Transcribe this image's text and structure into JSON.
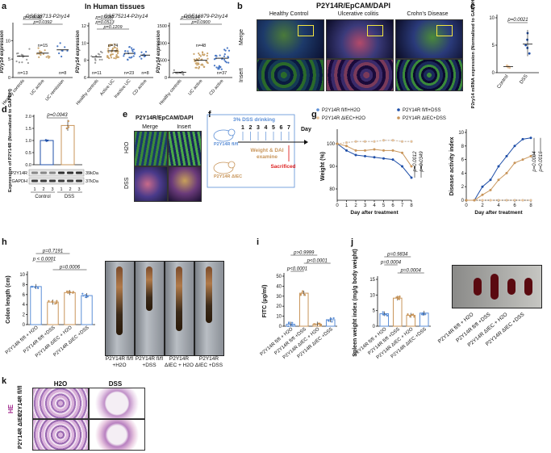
{
  "panel_a": {
    "letter": "a",
    "section_title": "In Human tissues",
    "plots": [
      {
        "title": "GSE38713-P2ry14",
        "ylabel": "P2ry14 expression",
        "groups": [
          "Healthy controls",
          "UC active",
          "UC remission"
        ],
        "n": [
          "n=13",
          "n=15",
          "n=8"
        ],
        "pvals": [
          "p=0.0392",
          "p=0.0092"
        ],
        "ylim": [
          0,
          14
        ]
      },
      {
        "title": "GSE75214-P2ry14",
        "ylabel": "P2ry14 expression",
        "groups": [
          "Healthy controls",
          "Active UC",
          "Inactive UC",
          "CD active"
        ],
        "n": [
          "n=11",
          "n=74",
          "n=23",
          "n=8"
        ],
        "pvals": [
          "p=0.1209",
          "p=0.0513",
          "p=0.0057"
        ],
        "ylim": [
          6,
          12
        ]
      },
      {
        "title": "GSE16879-P2ry14",
        "ylabel": "P2ry14 expression",
        "groups": [
          "Healthy controls",
          "UC active",
          "CD active"
        ],
        "n": [
          "n=5",
          "n=48",
          "n=37"
        ],
        "pvals": [
          "p=0.0900",
          "p=0.0104"
        ],
        "ylim": [
          0,
          1500
        ]
      }
    ]
  },
  "panel_b": {
    "letter": "b",
    "title": "P2Y14R/EpCAM/DAPI",
    "columns": [
      "Healthy Control",
      "Ulcerative colitis",
      "Crohn's Disease"
    ],
    "rows": [
      "Merge",
      "Insert"
    ]
  },
  "panel_c": {
    "letter": "c",
    "ylabel": "P2ry14 mRNA expression (Normalized to GAPDH)",
    "groups": [
      "Control",
      "DSS"
    ],
    "pval": "p=0.0021",
    "ticks": [
      "0",
      "5",
      "10"
    ],
    "ylim": [
      0,
      10
    ]
  },
  "panel_d": {
    "letter": "d",
    "ylabel": "Expression of P2Y14R (Normalized to GAPDH)",
    "pval": "p=0.0043",
    "ticks": [
      "0.0",
      "0.5",
      "1.0",
      "1.5",
      "2.0"
    ],
    "ylim": [
      0,
      2
    ],
    "blot_rows": [
      {
        "name": "P2Y14R",
        "size": "39kDa"
      },
      {
        "name": "GAPDH",
        "size": "37kDa"
      }
    ],
    "lanes": [
      "1",
      "2",
      "3",
      "1",
      "2",
      "3"
    ],
    "groups": [
      "Control",
      "DSS"
    ]
  },
  "panel_e": {
    "letter": "e",
    "title": "P2Y14R/EpCAM/DAPI",
    "columns": [
      "Merge",
      "Insert"
    ],
    "rows": [
      "H2O",
      "DSS"
    ]
  },
  "panel_f": {
    "letter": "f",
    "dss_label": "3% DSS drinking",
    "days": [
      "1",
      "2",
      "3",
      "4",
      "5",
      "6",
      "7"
    ],
    "day_label": "Day",
    "weight_label": "Weight & DAI",
    "examine_label": "examine",
    "sacrificed_label": "Sacrificed",
    "mouse_labels": [
      "P2Y14R fl/fl",
      "P2Y14R ΔIEC"
    ]
  },
  "panel_g": {
    "letter": "g",
    "legend": [
      "P2Y14R fl/fl+H2O",
      "P2Y14R fl/fl+DSS",
      "P2Y14R ΔIEC+H2O",
      "P2Y14R ΔIEC+DSS"
    ],
    "series_colors": [
      "#5b8ed6",
      "#1f4fa8",
      "#e8c39a",
      "#c8955a"
    ],
    "chart_data": [
      {
        "type": "line",
        "xlabel": "Day after treatment",
        "ylabel": "Weight (%)",
        "x": [
          0,
          1,
          2,
          3,
          4,
          5,
          6,
          7,
          8
        ],
        "ylim": [
          75,
          105
        ],
        "xlim": [
          0,
          8
        ],
        "yticks": [
          80,
          90,
          100
        ],
        "xticks": [
          0,
          1,
          2,
          3,
          4,
          5,
          6,
          7,
          8
        ],
        "pvals": [
          "p=0.0012",
          "p=0.0349"
        ],
        "series": [
          {
            "values": [
              100,
              100.5,
              101,
              101,
              101,
              101.5,
              101.5,
              101,
              101
            ]
          },
          {
            "values": [
              100,
              97,
              95,
              94.5,
              94,
              93.5,
              93,
              90,
              85
            ]
          },
          {
            "values": [
              100,
              100.5,
              101,
              101,
              101,
              101.5,
              101.5,
              101,
              101
            ]
          },
          {
            "values": [
              100,
              99,
              97,
              97,
              97.5,
              97,
              97,
              96,
              90
            ]
          }
        ]
      },
      {
        "type": "line",
        "xlabel": "Day after treatment",
        "ylabel": "Disease activity index",
        "x": [
          0,
          1,
          2,
          3,
          4,
          5,
          6,
          7,
          8
        ],
        "ylim": [
          0,
          10
        ],
        "xlim": [
          0,
          8
        ],
        "yticks": [
          0,
          2,
          4,
          6,
          8,
          10
        ],
        "xticks": [
          0,
          2,
          4,
          6,
          8
        ],
        "pvals": [
          "p=0.0004",
          "p=0.0016"
        ],
        "series": [
          {
            "values": [
              0,
              0,
              0,
              0,
              0,
              0,
              0,
              0,
              0
            ]
          },
          {
            "values": [
              0,
              0,
              2,
              3,
              5,
              6.5,
              8,
              9,
              9.2
            ]
          },
          {
            "values": [
              0,
              0,
              0,
              0,
              0,
              0,
              0,
              0,
              0
            ]
          },
          {
            "values": [
              0,
              0,
              0.8,
              1.5,
              3,
              4,
              5.5,
              6,
              6.5
            ]
          }
        ]
      }
    ]
  },
  "panel_h": {
    "letter": "h",
    "ylabel": "Colon length (cm)",
    "pvals": [
      "p=0.7191",
      "p < 0.0001",
      "p=0.0006"
    ],
    "ticks": [
      "0",
      "2",
      "4",
      "6",
      "8",
      "10"
    ],
    "ylim": [
      0,
      10
    ],
    "groups": [
      "P2Y14R fl/fl + H2O",
      "P2Y14R fl/fl +DSS",
      "P2Y14R ΔIEC + H2O",
      "P2Y14R ΔIEC +DSS"
    ],
    "bars": [
      7.6,
      4.5,
      6.4,
      5.8
    ],
    "photo_labels": [
      [
        "P2Y14R fl/fl",
        "+H2O"
      ],
      [
        "P2Y14R fl/fl",
        "+DSS"
      ],
      [
        "P2Y14R ΔIEC",
        "+ H2O"
      ],
      [
        "P2Y14R ΔIEC",
        "+DSS"
      ]
    ]
  },
  "panel_i": {
    "letter": "i",
    "ylabel": "FITC (μg/ml)",
    "pvals": [
      "p>0.9999",
      "p<0.0001",
      "p<0.0001"
    ],
    "ticks": [
      "0",
      "10",
      "20",
      "30",
      "40",
      "50"
    ],
    "ylim": [
      0,
      50
    ],
    "groups": [
      "P2Y14R fl/fl + H2O",
      "P2Y14R fl/fl +DSS",
      "P2Y14R ΔIEC + H2O",
      "P2Y14R ΔIEC +DSS"
    ],
    "bars": [
      2,
      33,
      2,
      6.5
    ]
  },
  "panel_j": {
    "letter": "j",
    "ylabel": "Spleen weight index (mg/g body weight)",
    "pvals": [
      "p=0.9834",
      "p=0.0004",
      "p=0.0004"
    ],
    "ticks": [
      "0",
      "5",
      "10",
      "15"
    ],
    "ylim": [
      0,
      15
    ],
    "groups": [
      "P2Y14R fl/fl + H2O",
      "P2Y14R fl/fl +DSS",
      "P2Y14R ΔIEC + H2O",
      "P2Y14R ΔIEC +DSS"
    ],
    "bars": [
      4,
      9,
      3.5,
      4.2
    ],
    "photo_labels": [
      "P2Y14R fl/fl + H2O",
      "P2Y14R fl/fl +DSS",
      "P2Y14R ΔIEC + H2O",
      "P2Y14R ΔIEC +DSS"
    ]
  },
  "panel_k": {
    "letter": "k",
    "stain": "HE",
    "columns": [
      "H2O",
      "DSS"
    ],
    "rows": [
      "P2Y14R fl/fl",
      "P2Y14R ΔIEC"
    ]
  }
}
